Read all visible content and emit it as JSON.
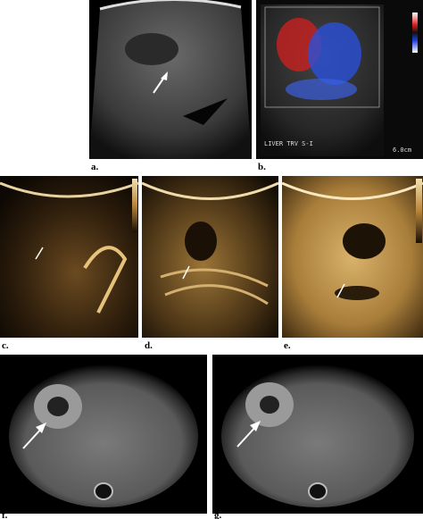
{
  "panels": [
    {
      "label": "a."
    },
    {
      "label": "b."
    },
    {
      "label": "c."
    },
    {
      "label": "d."
    },
    {
      "label": "e."
    },
    {
      "label": "f."
    },
    {
      "label": "g."
    }
  ],
  "overlays": {
    "view": "LIVER TRV S-I",
    "depth": "6.0cm"
  }
}
